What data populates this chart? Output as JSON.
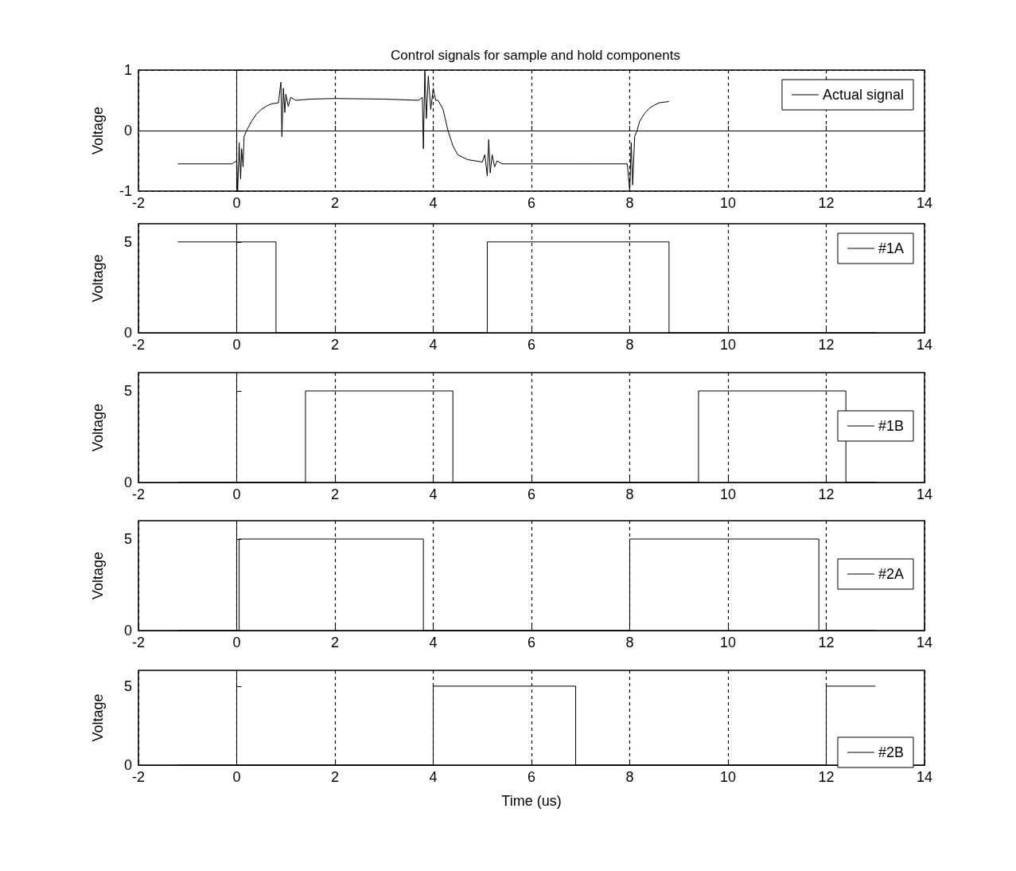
{
  "chart_data": [
    {
      "type": "line",
      "title": "Control signals for sample and hold components",
      "ylabel": "Voltage",
      "xlim": [
        -2,
        14
      ],
      "ylim": [
        -1,
        1
      ],
      "xticks": [
        -2,
        0,
        2,
        4,
        6,
        8,
        10,
        12,
        14
      ],
      "yticks": [
        -1,
        0,
        1
      ],
      "grid": true,
      "legend": "top right",
      "series": [
        {
          "name": "Actual signal",
          "color": "#000000",
          "x": [
            -1.2,
            -0.1,
            0,
            0.02,
            0.05,
            0.08,
            0.1,
            0.13,
            0.15,
            0.2,
            0.3,
            0.4,
            0.5,
            0.6,
            0.7,
            0.85,
            0.9,
            0.92,
            0.95,
            0.98,
            1.0,
            1.05,
            1.1,
            1.2,
            1.5,
            2,
            3,
            3.7,
            3.78,
            3.8,
            3.83,
            3.86,
            3.9,
            3.95,
            4.0,
            4.05,
            4.1,
            4.2,
            4.3,
            4.4,
            4.5,
            4.7,
            5.0,
            5.05,
            5.1,
            5.13,
            5.16,
            5.2,
            5.25,
            5.3,
            5.4,
            6,
            7,
            7.95,
            8.0,
            8.03,
            8.06,
            8.1,
            8.15,
            8.2,
            8.3,
            8.4,
            8.5,
            8.6,
            8.8
          ],
          "values": [
            -0.55,
            -0.55,
            -0.5,
            -1,
            -0.2,
            -0.8,
            -0.3,
            -0.6,
            -0.1,
            0.0,
            0.15,
            0.27,
            0.35,
            0.4,
            0.44,
            0.46,
            0.8,
            -0.1,
            0.7,
            0.3,
            0.6,
            0.4,
            0.55,
            0.5,
            0.52,
            0.53,
            0.52,
            0.5,
            0.55,
            -0.3,
            1.0,
            0.2,
            0.9,
            0.35,
            0.7,
            0.5,
            0.5,
            0.35,
            0.0,
            -0.25,
            -0.4,
            -0.48,
            -0.52,
            -0.4,
            -0.75,
            -0.15,
            -0.7,
            -0.4,
            -0.6,
            -0.5,
            -0.55,
            -0.55,
            -0.55,
            -0.55,
            -1.0,
            -0.2,
            -0.9,
            -0.1,
            0.0,
            0.15,
            0.28,
            0.37,
            0.42,
            0.46,
            0.48
          ]
        }
      ]
    },
    {
      "type": "step",
      "ylabel": "Voltage",
      "xlim": [
        -2,
        14
      ],
      "ylim": [
        0,
        6
      ],
      "xticks": [
        -2,
        0,
        2,
        4,
        6,
        8,
        10,
        12,
        14
      ],
      "yticks": [
        0,
        5
      ],
      "grid": "x",
      "legend": "top right",
      "series": [
        {
          "name": "#1A",
          "color": "#000000",
          "x": [
            -1.2,
            0.8,
            5.1,
            8.8,
            13
          ],
          "values": [
            5,
            0,
            5,
            0,
            0
          ]
        }
      ]
    },
    {
      "type": "step",
      "ylabel": "Voltage",
      "xlim": [
        -2,
        14
      ],
      "ylim": [
        0,
        6
      ],
      "xticks": [
        -2,
        0,
        2,
        4,
        6,
        8,
        10,
        12,
        14
      ],
      "yticks": [
        0,
        5
      ],
      "grid": "x",
      "legend": "right",
      "series": [
        {
          "name": "#1B",
          "color": "#000000",
          "x": [
            -1.2,
            1.4,
            4.4,
            9.4,
            12.4,
            13
          ],
          "values": [
            0,
            5,
            0,
            5,
            0,
            0
          ]
        }
      ]
    },
    {
      "type": "step",
      "ylabel": "Voltage",
      "xlim": [
        -2,
        14
      ],
      "ylim": [
        0,
        6
      ],
      "xticks": [
        -2,
        0,
        2,
        4,
        6,
        8,
        10,
        12,
        14
      ],
      "yticks": [
        0,
        5
      ],
      "grid": "x",
      "legend": "right",
      "series": [
        {
          "name": "#2A",
          "color": "#000000",
          "x": [
            -1.2,
            0.05,
            3.8,
            8.0,
            11.85,
            13
          ],
          "values": [
            0,
            5,
            0,
            5,
            0,
            0
          ]
        }
      ]
    },
    {
      "type": "step",
      "xlabel": "Time (us)",
      "ylabel": "Voltage",
      "xlim": [
        -2,
        14
      ],
      "ylim": [
        0,
        6
      ],
      "xticks": [
        -2,
        0,
        2,
        4,
        6,
        8,
        10,
        12,
        14
      ],
      "yticks": [
        0,
        5
      ],
      "grid": "x",
      "legend": "bottom right",
      "series": [
        {
          "name": "#2B",
          "color": "#000000",
          "x": [
            -1.2,
            4.0,
            6.9,
            12.0,
            13
          ],
          "values": [
            0,
            5,
            0,
            5,
            5
          ]
        }
      ]
    }
  ]
}
